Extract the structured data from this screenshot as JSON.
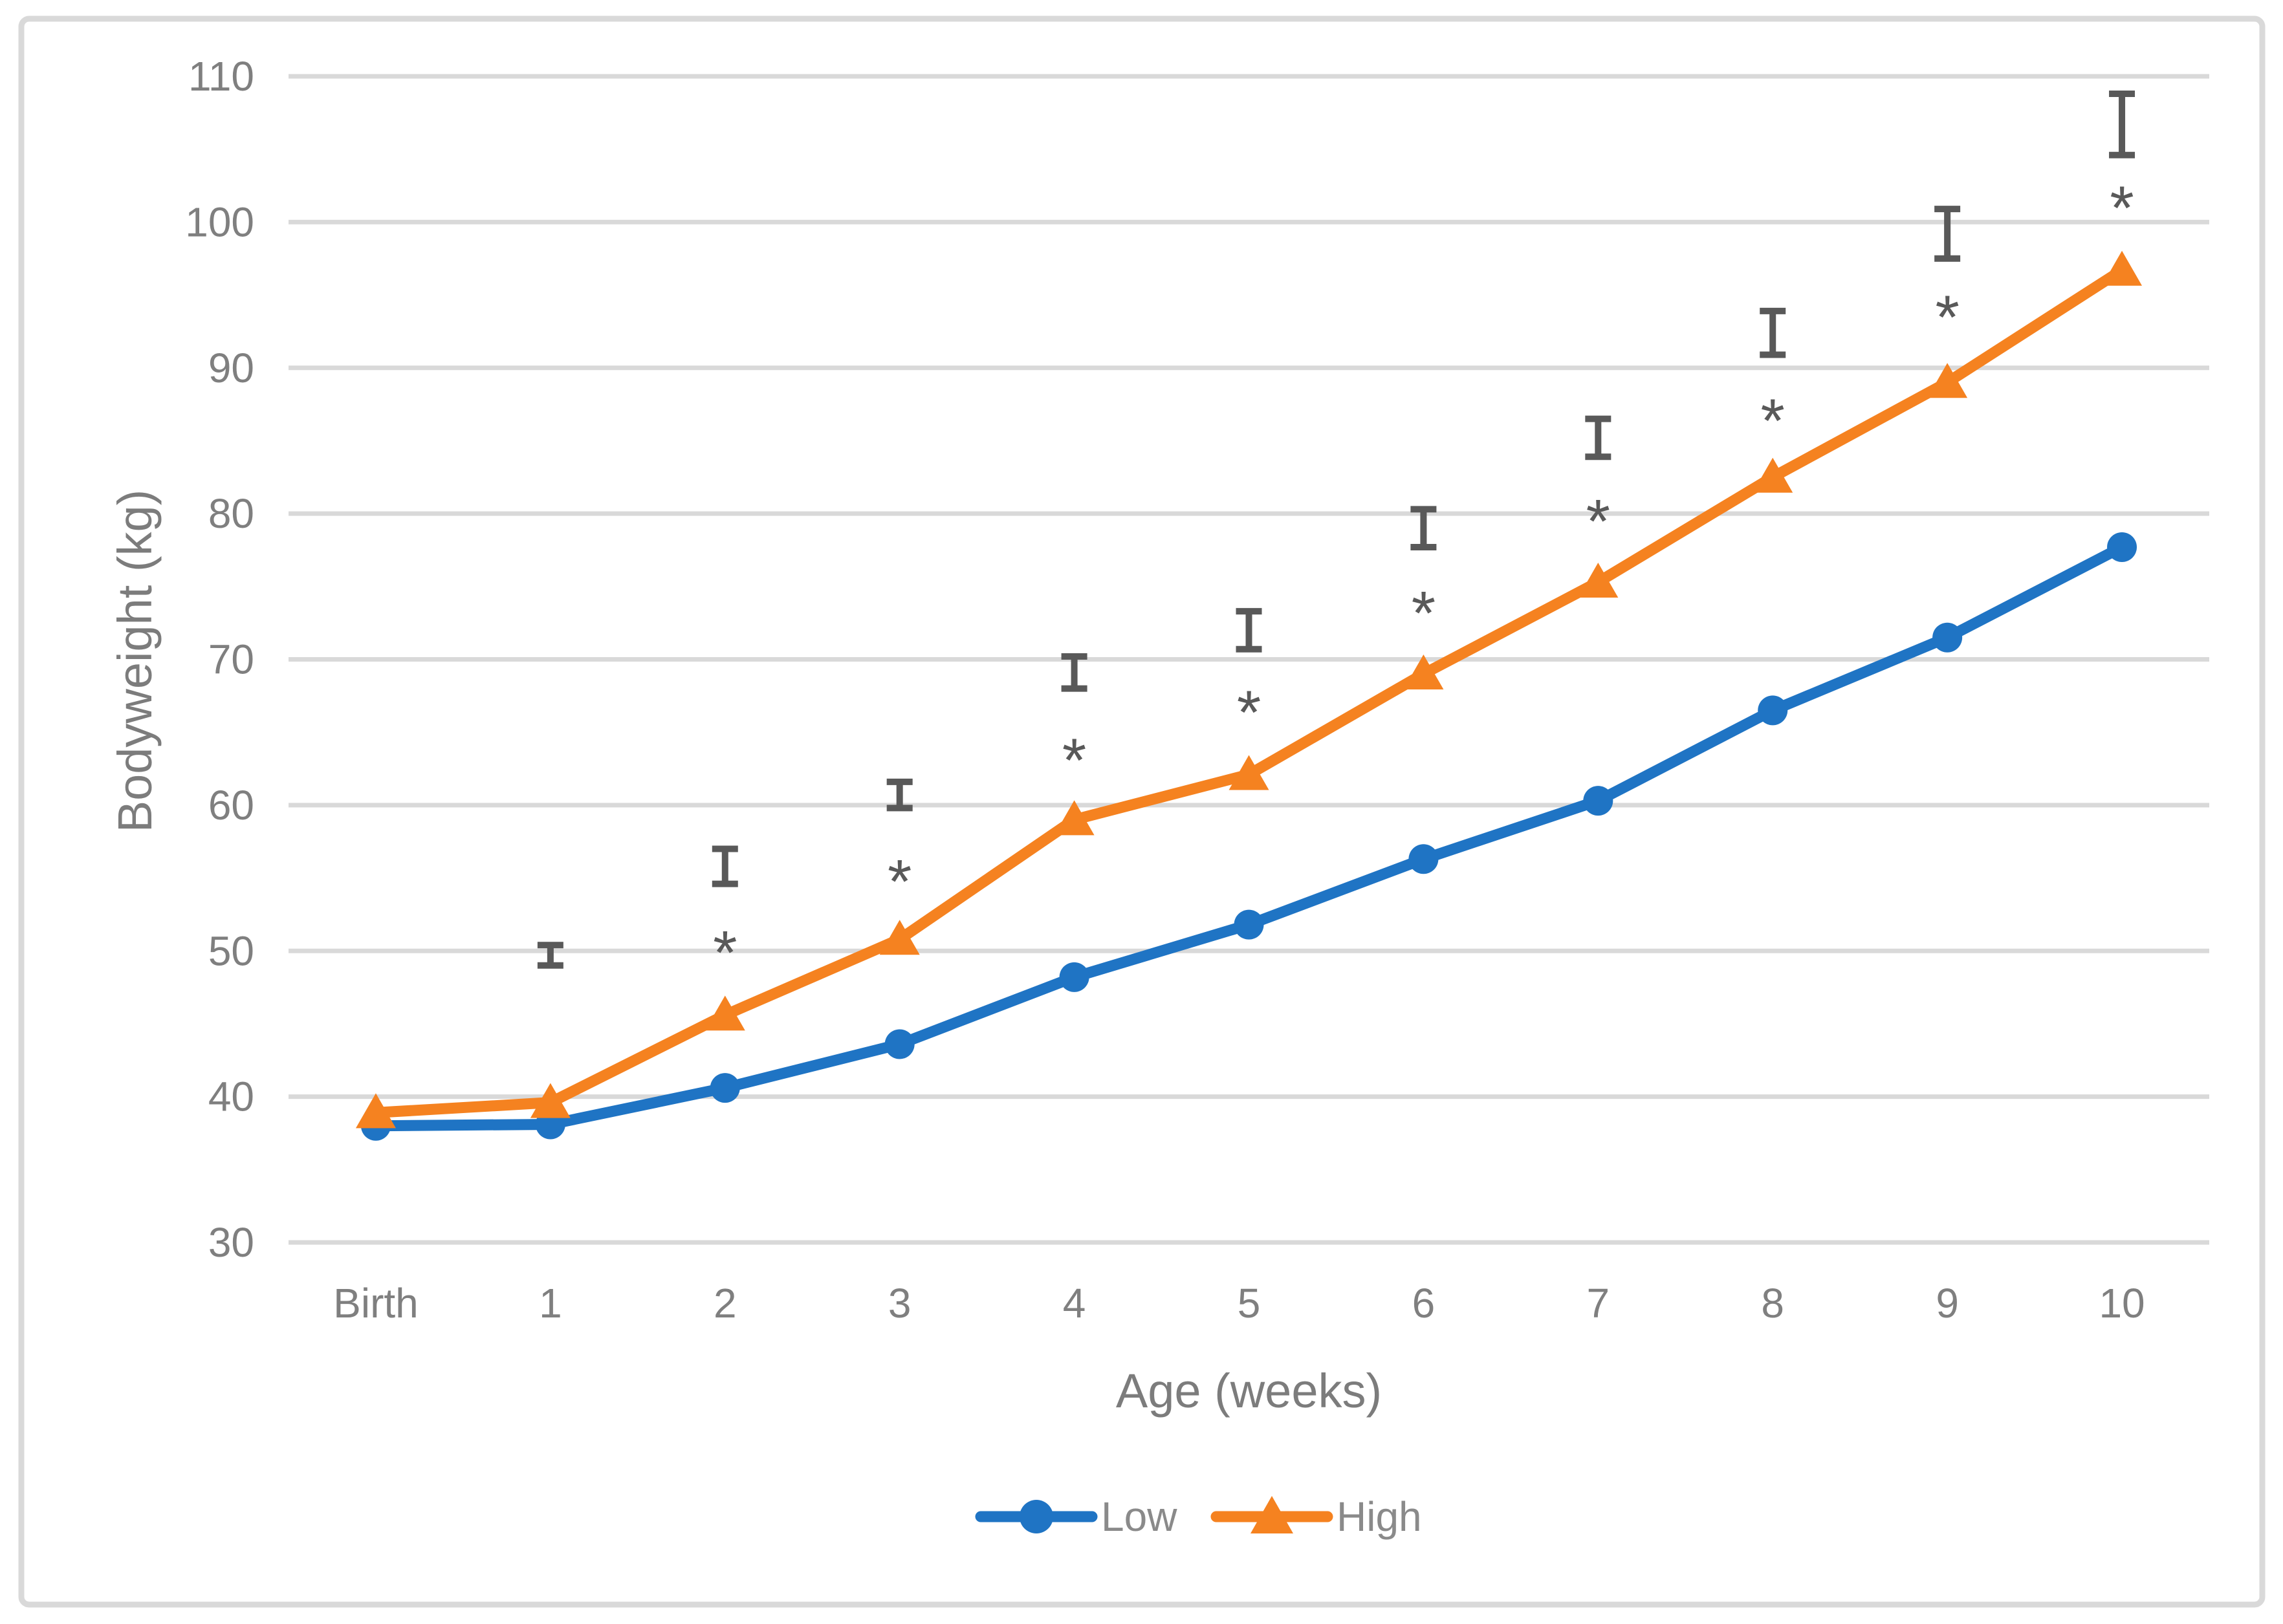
{
  "figure": {
    "border_color": "#D9D9D9",
    "background_color": "#FFFFFF"
  },
  "chart_data": {
    "type": "line",
    "title": "",
    "xlabel": "Age (weeks)",
    "ylabel": "Bodyweight (kg)",
    "categories": [
      "Birth",
      "1",
      "2",
      "3",
      "4",
      "5",
      "6",
      "7",
      "8",
      "9",
      "10"
    ],
    "yticks": [
      110,
      100,
      90,
      80,
      70,
      60,
      50,
      40,
      30
    ],
    "ylim": [
      30,
      110
    ],
    "grid": "horizontal",
    "legend_position": "bottom-center",
    "significance_symbol": "*",
    "series": [
      {
        "name": "Low",
        "color": "#1F74C4",
        "marker": "circle",
        "values": [
          38.0,
          38.1,
          40.6,
          43.6,
          48.2,
          51.8,
          56.3,
          60.3,
          66.5,
          71.5,
          77.7
        ]
      },
      {
        "name": "High",
        "color": "#F58220",
        "marker": "triangle",
        "values": [
          38.9,
          39.6,
          45.6,
          50.8,
          59.0,
          62.1,
          69.0,
          75.3,
          82.5,
          89.0,
          96.7
        ]
      }
    ],
    "error_bars": {
      "color": "#595959",
      "items": [
        {
          "category": "1",
          "center": 49.7,
          "half_range": 0.7,
          "asterisk": false,
          "asterisk_at": null
        },
        {
          "category": "2",
          "center": 55.8,
          "half_range": 1.2,
          "asterisk": true,
          "asterisk_at": 50.8
        },
        {
          "category": "3",
          "center": 60.7,
          "half_range": 0.9,
          "asterisk": true,
          "asterisk_at": 55.7
        },
        {
          "category": "4",
          "center": 69.1,
          "half_range": 1.1,
          "asterisk": true,
          "asterisk_at": 64.0
        },
        {
          "category": "5",
          "center": 72.0,
          "half_range": 1.3,
          "asterisk": true,
          "asterisk_at": 67.3
        },
        {
          "category": "6",
          "center": 79.0,
          "half_range": 1.3,
          "asterisk": true,
          "asterisk_at": 74.1
        },
        {
          "category": "7",
          "center": 85.2,
          "half_range": 1.3,
          "asterisk": true,
          "asterisk_at": 80.4
        },
        {
          "category": "8",
          "center": 92.4,
          "half_range": 1.5,
          "asterisk": true,
          "asterisk_at": 87.3
        },
        {
          "category": "9",
          "center": 99.2,
          "half_range": 1.7,
          "asterisk": true,
          "asterisk_at": 94.4
        },
        {
          "category": "10",
          "center": 106.7,
          "half_range": 2.1,
          "asterisk": true,
          "asterisk_at": 101.9
        }
      ]
    },
    "colors": {
      "gridline": "#D9D9D9",
      "tick_label": "#7F7F7F",
      "axis_title": "#7C7C7C",
      "legend_text": "#8A8A8A"
    }
  }
}
